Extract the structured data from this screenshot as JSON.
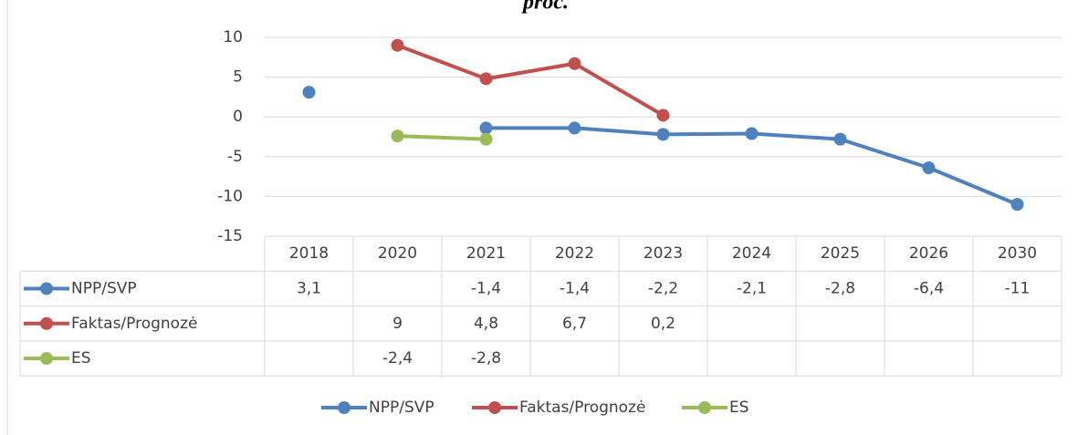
{
  "chart_data": {
    "type": "line",
    "title": "proc.",
    "categories": [
      "2018",
      "2020",
      "2021",
      "2022",
      "2023",
      "2024",
      "2025",
      "2026",
      "2030"
    ],
    "series": [
      {
        "name": "NPP/SVP",
        "color": "#4f81bd",
        "values": [
          3.1,
          null,
          -1.4,
          -1.4,
          -2.2,
          -2.1,
          -2.8,
          -6.4,
          -11
        ],
        "value_labels": [
          "3,1",
          null,
          "-1,4",
          "-1,4",
          "-2,2",
          "-2,1",
          "-2,8",
          "-6,4",
          "-11"
        ]
      },
      {
        "name": "Faktas/Prognozė",
        "color": "#c0504d",
        "values": [
          null,
          9,
          4.8,
          6.7,
          0.2,
          null,
          null,
          null,
          null
        ],
        "value_labels": [
          null,
          "9",
          "4,8",
          "6,7",
          "0,2",
          null,
          null,
          null,
          null
        ]
      },
      {
        "name": "ES",
        "color": "#9bbb59",
        "values": [
          null,
          -2.4,
          -2.8,
          null,
          null,
          null,
          null,
          null,
          null
        ],
        "value_labels": [
          null,
          "-2,4",
          "-2,8",
          null,
          null,
          null,
          null,
          null,
          null
        ]
      }
    ],
    "ylim": [
      -15,
      10
    ],
    "yticks": [
      -15,
      -10,
      -5,
      0,
      5,
      10
    ],
    "grid": true,
    "legend": "bottom"
  }
}
